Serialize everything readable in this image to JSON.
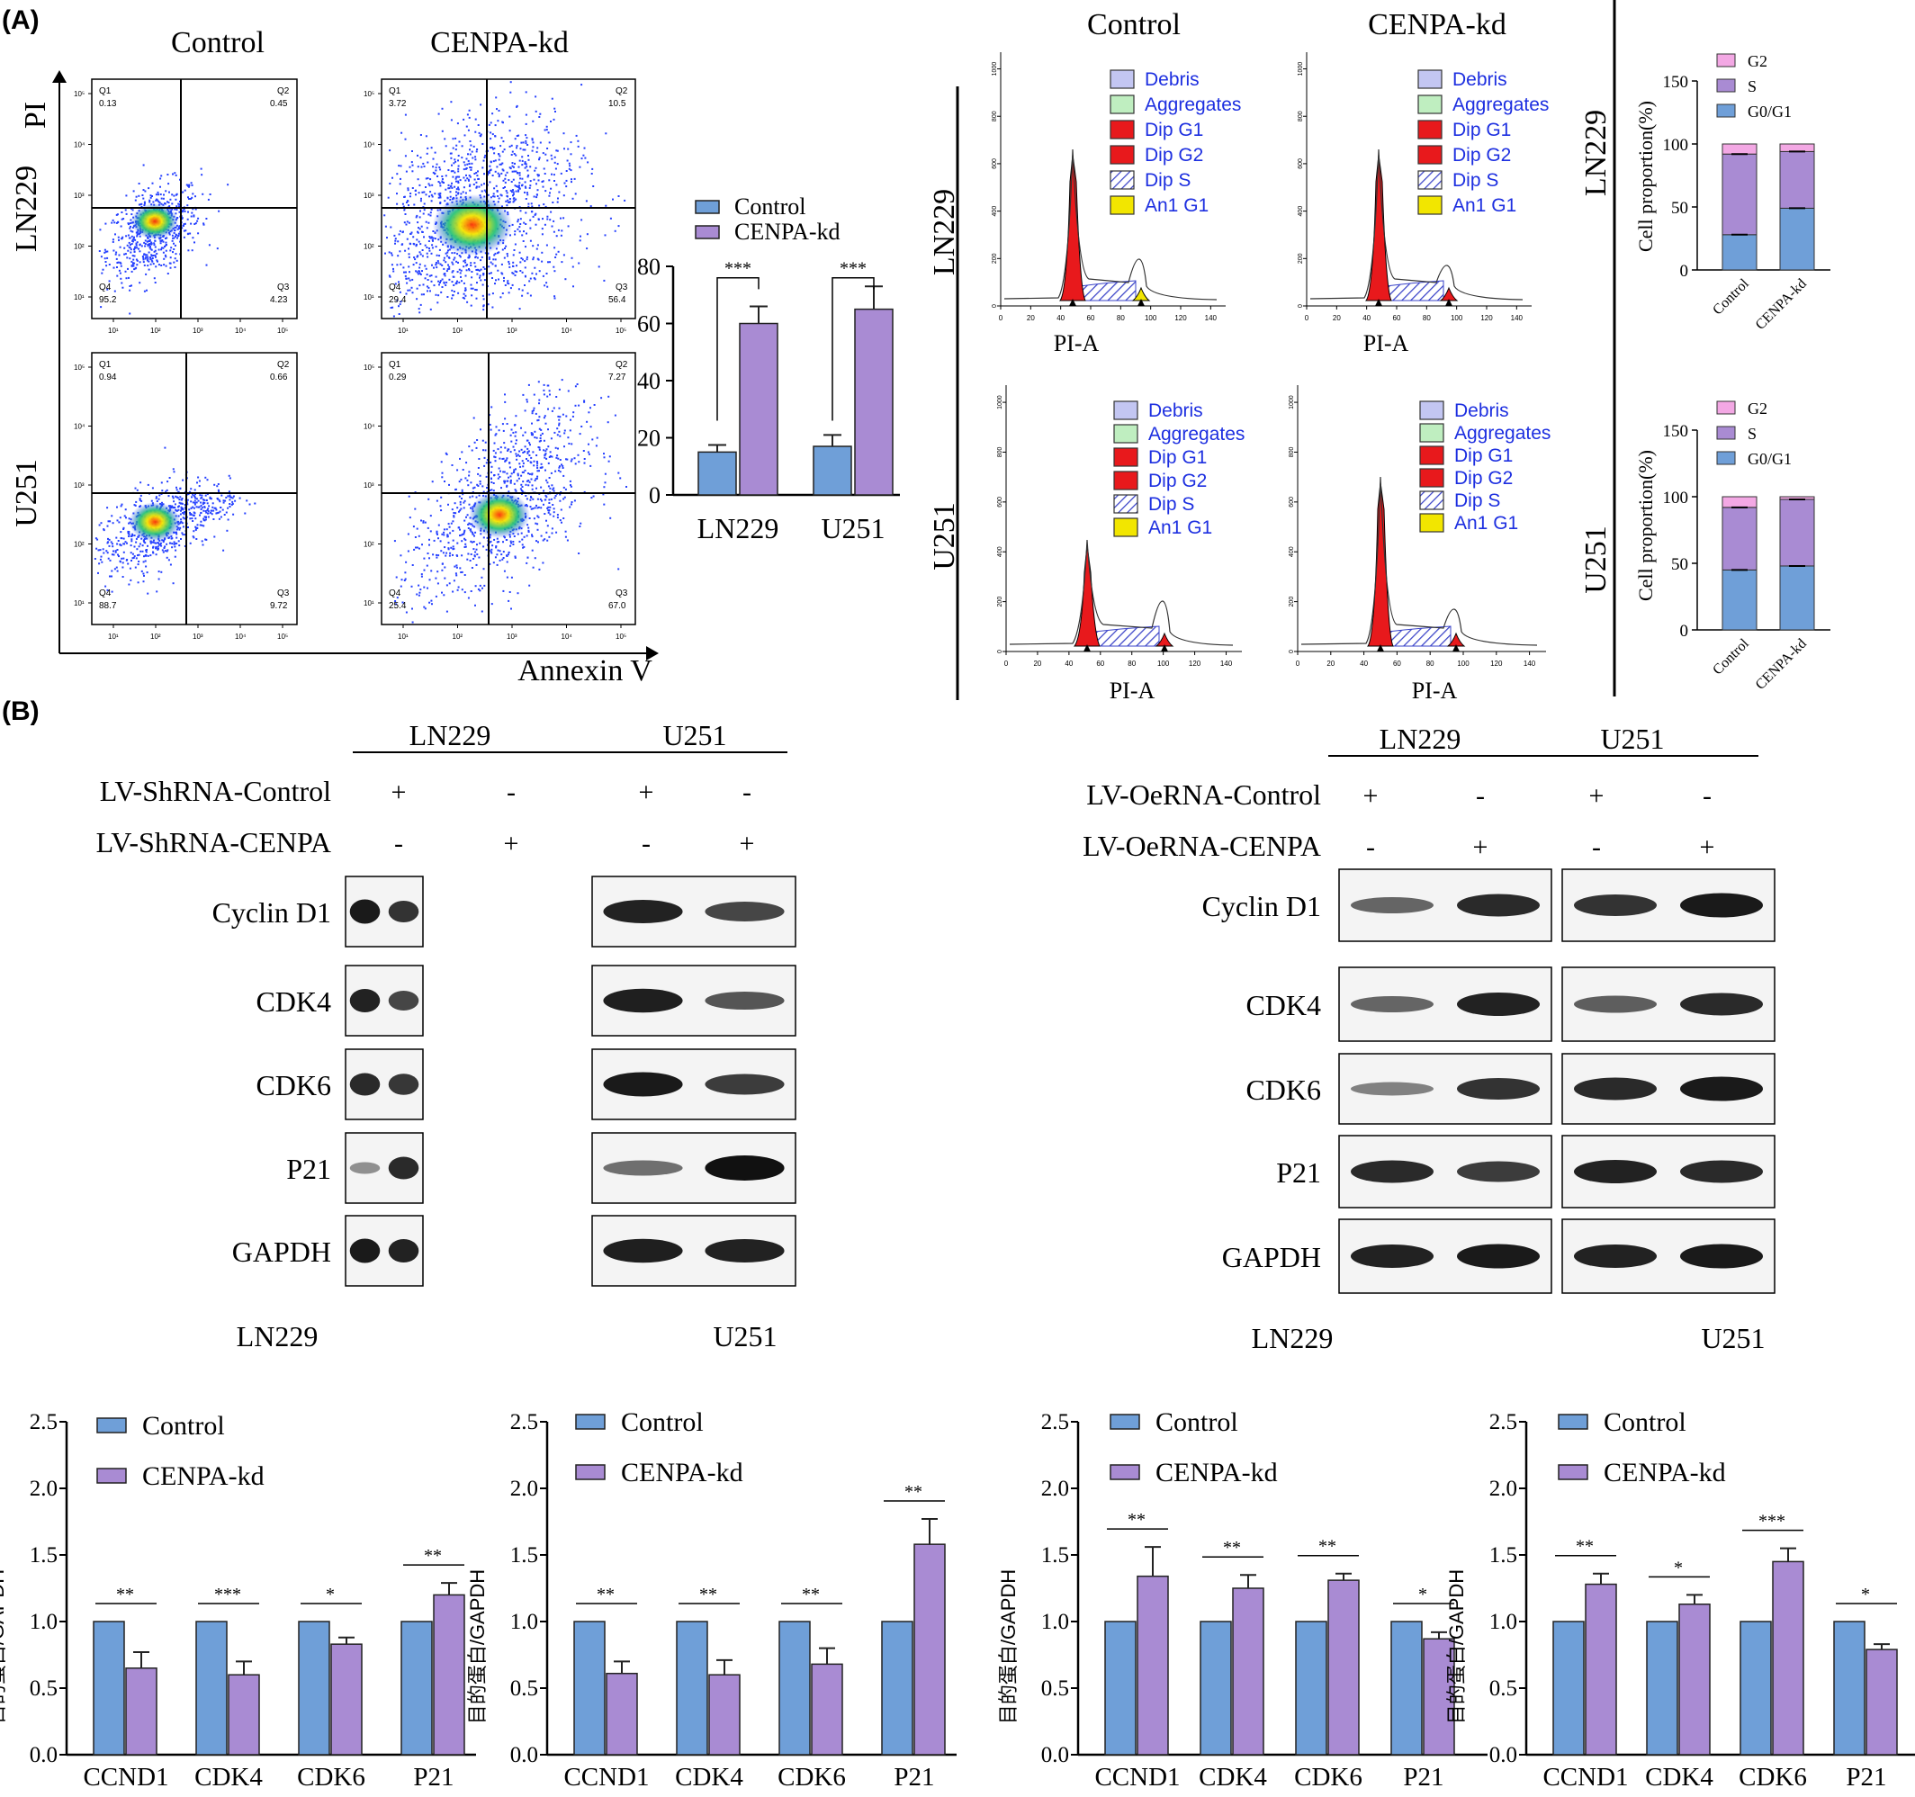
{
  "panel_labels": [
    "(A)",
    "(B)"
  ],
  "colors": {
    "control": "#6f9fd8",
    "cenpa": "#a98bd3",
    "g2": "#f3a8e4",
    "s": "#a98bd3",
    "g0g1": "#6f9fd8",
    "dip": "#e8191c",
    "an1": "#f2e600",
    "debris": "#c3c6f2",
    "aggregates": "#bfeec0",
    "legend_text": "#1d2fe0"
  },
  "flow": {
    "col_labels": [
      "Control",
      "CENPA-kd"
    ],
    "row_labels": [
      "LN229",
      "U251"
    ],
    "y_axis_label": "PI",
    "x_axis_label": "Annexin V",
    "plots": [
      {
        "q1": "Q1",
        "q1v": "0.13",
        "q2": "Q2",
        "q2v": "0.45",
        "q3": "Q3",
        "q3v": "4.23",
        "q4": "Q4",
        "q4v": "95.2"
      },
      {
        "q1": "Q1",
        "q1v": "3.72",
        "q2": "Q2",
        "q2v": "10.5",
        "q3": "Q3",
        "q3v": "56.4",
        "q4": "Q4",
        "q4v": "29.4"
      },
      {
        "q1": "Q1",
        "q1v": "0.94",
        "q2": "Q2",
        "q2v": "0.66",
        "q3": "Q3",
        "q3v": "9.72",
        "q4": "Q4",
        "q4v": "88.7"
      },
      {
        "q1": "Q1",
        "q1v": "0.29",
        "q2": "Q2",
        "q2v": "7.27",
        "q3": "Q3",
        "q3v": "67.0",
        "q4": "Q4",
        "q4v": "25.4"
      }
    ],
    "scale_ticks": [
      "10¹",
      "10²",
      "10³",
      "10⁴",
      "10⁵"
    ]
  },
  "chart_data": [
    {
      "type": "bar",
      "categories": [
        "LN229",
        "U251"
      ],
      "series": [
        {
          "name": "Control",
          "values": [
            15,
            17
          ],
          "errors": [
            2.5,
            4
          ]
        },
        {
          "name": "CENPA-kd",
          "values": [
            60,
            65
          ],
          "errors": [
            6,
            8
          ]
        }
      ],
      "significance": [
        "***",
        "***"
      ],
      "yticks": [
        "0",
        "20",
        "40",
        "60",
        "80"
      ],
      "ylim": [
        0,
        80
      ]
    },
    {
      "type": "bar",
      "stacked": true,
      "cell": "LN229",
      "categories": [
        "Control",
        "CENPA-kd"
      ],
      "ylabel": "Cell proportion(%)",
      "yticks": [
        "0",
        "50",
        "100",
        "150"
      ],
      "ylim": [
        0,
        150
      ],
      "series": [
        {
          "name": "G0/G1",
          "values": [
            28,
            49
          ]
        },
        {
          "name": "S",
          "values": [
            64,
            45
          ]
        },
        {
          "name": "G2",
          "values": [
            8,
            6
          ]
        }
      ]
    },
    {
      "type": "bar",
      "stacked": true,
      "cell": "U251",
      "categories": [
        "Control",
        "CENPA-kd"
      ],
      "ylabel": "Cell proportion(%)",
      "yticks": [
        "0",
        "50",
        "100",
        "150"
      ],
      "ylim": [
        0,
        150
      ],
      "series": [
        {
          "name": "G0/G1",
          "values": [
            45,
            48
          ]
        },
        {
          "name": "S",
          "values": [
            47,
            50
          ]
        },
        {
          "name": "G2",
          "values": [
            8,
            2
          ]
        }
      ]
    },
    {
      "type": "bar",
      "categories": [
        "CCND1",
        "CDK4",
        "CDK6",
        "P21"
      ],
      "ylabel": "目的蛋白/GAPDH",
      "yticks": [
        "0.0",
        "0.5",
        "1.0",
        "1.5",
        "2.0",
        "2.5"
      ],
      "ylim": [
        0,
        2.5
      ],
      "series": [
        {
          "name": "Control",
          "values": [
            1.0,
            1.0,
            1.0,
            1.0
          ]
        },
        {
          "name": "CENPA-kd",
          "values": [
            0.65,
            0.6,
            0.83,
            1.2
          ],
          "errors": [
            0.12,
            0.1,
            0.05,
            0.09
          ]
        }
      ],
      "significance": [
        "**",
        "***",
        "*",
        "**"
      ]
    },
    {
      "type": "bar",
      "categories": [
        "CCND1",
        "CDK4",
        "CDK6",
        "P21"
      ],
      "ylabel": "目的蛋白/GAPDH",
      "yticks": [
        "0.0",
        "0.5",
        "1.0",
        "1.5",
        "2.0",
        "2.5"
      ],
      "ylim": [
        0,
        2.5
      ],
      "series": [
        {
          "name": "Control",
          "values": [
            1.0,
            1.0,
            1.0,
            1.0
          ]
        },
        {
          "name": "CENPA-kd",
          "values": [
            0.61,
            0.6,
            0.68,
            1.58
          ],
          "errors": [
            0.09,
            0.11,
            0.12,
            0.19
          ]
        }
      ],
      "significance": [
        "**",
        "**",
        "**",
        "**"
      ]
    },
    {
      "type": "bar",
      "categories": [
        "CCND1",
        "CDK4",
        "CDK6",
        "P21"
      ],
      "ylabel": "目的蛋白/GAPDH",
      "yticks": [
        "0.0",
        "0.5",
        "1.0",
        "1.5",
        "2.0",
        "2.5"
      ],
      "ylim": [
        0,
        2.5
      ],
      "series": [
        {
          "name": "Control",
          "values": [
            1.0,
            1.0,
            1.0,
            1.0
          ]
        },
        {
          "name": "CENPA-kd",
          "values": [
            1.34,
            1.25,
            1.31,
            0.87
          ],
          "errors": [
            0.22,
            0.1,
            0.05,
            0.05
          ]
        }
      ],
      "significance": [
        "**",
        "**",
        "**",
        "*"
      ]
    },
    {
      "type": "bar",
      "categories": [
        "CCND1",
        "CDK4",
        "CDK6",
        "P21"
      ],
      "ylabel": "目的蛋白/GAPDH",
      "yticks": [
        "0.0",
        "0.5",
        "1.0",
        "1.5",
        "2.0",
        "2.5"
      ],
      "ylim": [
        0,
        2.5
      ],
      "series": [
        {
          "name": "Control",
          "values": [
            1.0,
            1.0,
            1.0,
            1.0
          ]
        },
        {
          "name": "CENPA-kd",
          "values": [
            1.28,
            1.13,
            1.45,
            0.79
          ],
          "errors": [
            0.08,
            0.07,
            0.1,
            0.04
          ]
        }
      ],
      "significance": [
        "**",
        "*",
        "***",
        "*"
      ]
    }
  ],
  "cell_cycle": {
    "col_labels": [
      "Control",
      "CENPA-kd"
    ],
    "row_labels": [
      "LN229",
      "U251"
    ],
    "x_axis_label": "PI-A",
    "legend": [
      "Debris",
      "Aggregates",
      "Dip G1",
      "Dip G2",
      "Dip S",
      "An1 G1"
    ],
    "x_ticks": [
      "0",
      "20",
      "40",
      "60",
      "80",
      "100",
      "120",
      "140"
    ],
    "y_ticks": [
      "0",
      "200",
      "400",
      "600",
      "800",
      "1000"
    ]
  },
  "western": {
    "left": {
      "groups": [
        "LN229",
        "U251"
      ],
      "conditions": [
        {
          "label": "LV-ShRNA-Control",
          "signs": [
            "+",
            "-",
            "+",
            "-"
          ]
        },
        {
          "label": "LV-ShRNA-CENPA",
          "signs": [
            "-",
            "+",
            "-",
            "+"
          ]
        }
      ],
      "bottom_labels": [
        "LN229",
        "U251"
      ]
    },
    "right": {
      "groups": [
        "LN229",
        "U251"
      ],
      "conditions": [
        {
          "label": "LV-OeRNA-Control",
          "signs": [
            "+",
            "-",
            "+",
            "-"
          ]
        },
        {
          "label": "LV-OeRNA-CENPA",
          "signs": [
            "-",
            "+",
            "-",
            "+"
          ]
        }
      ],
      "bottom_labels": [
        "LN229",
        "U251"
      ]
    },
    "proteins": [
      "Cyclin D1",
      "CDK4",
      "CDK6",
      "P21",
      "GAPDH"
    ]
  }
}
